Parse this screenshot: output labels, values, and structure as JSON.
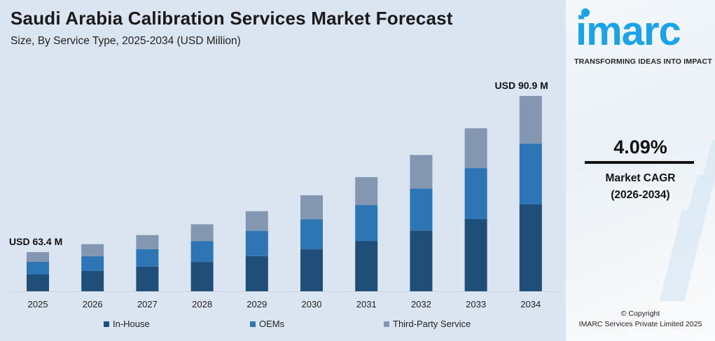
{
  "header": {
    "title": "Saudi Arabia Calibration Services Market Forecast",
    "subtitle": "Size, By Service Type, 2025-2034 (USD Million)"
  },
  "chart_data": {
    "type": "bar",
    "stacked": true,
    "title": "Saudi Arabia Calibration Services Market Forecast",
    "subtitle": "Size, By Service Type, 2025-2034 (USD Million)",
    "xlabel": "",
    "ylabel": "",
    "grid": false,
    "legend_position": "bottom",
    "categories": [
      "2025",
      "2026",
      "2027",
      "2028",
      "2029",
      "2030",
      "2031",
      "2032",
      "2033",
      "2034"
    ],
    "series": [
      {
        "name": "In-House",
        "color": "#1f4e79",
        "values": [
          27.2,
          28.0,
          29.0,
          29.9,
          31.0,
          32.1,
          33.8,
          35.9,
          37.7,
          40.4
        ]
      },
      {
        "name": "OEMs",
        "color": "#2e75b6",
        "values": [
          20.4,
          20.3,
          20.8,
          21.3,
          22.3,
          23.0,
          24.0,
          24.8,
          26.7,
          28.3
        ]
      },
      {
        "name": "Third-Party Service",
        "color": "#8497b0",
        "values": [
          15.8,
          16.5,
          16.6,
          17.1,
          17.3,
          18.3,
          18.8,
          19.8,
          20.8,
          22.2
        ]
      }
    ],
    "annotations": [
      {
        "category": "2025",
        "text": "USD 63.4 M"
      },
      {
        "category": "2034",
        "text": "USD 90.9 M"
      }
    ]
  },
  "sidebar": {
    "logo_text": "imarc",
    "tagline": "TRANSFORMING IDEAS INTO IMPACT",
    "brand_color": "#1aa3e8",
    "cagr_value": "4.09%",
    "cagr_label": "Market CAGR",
    "cagr_period": "(2026-2034)",
    "copyright_line1": "© Copyright",
    "copyright_line2": "IMARC Services Private Limited 2025"
  }
}
